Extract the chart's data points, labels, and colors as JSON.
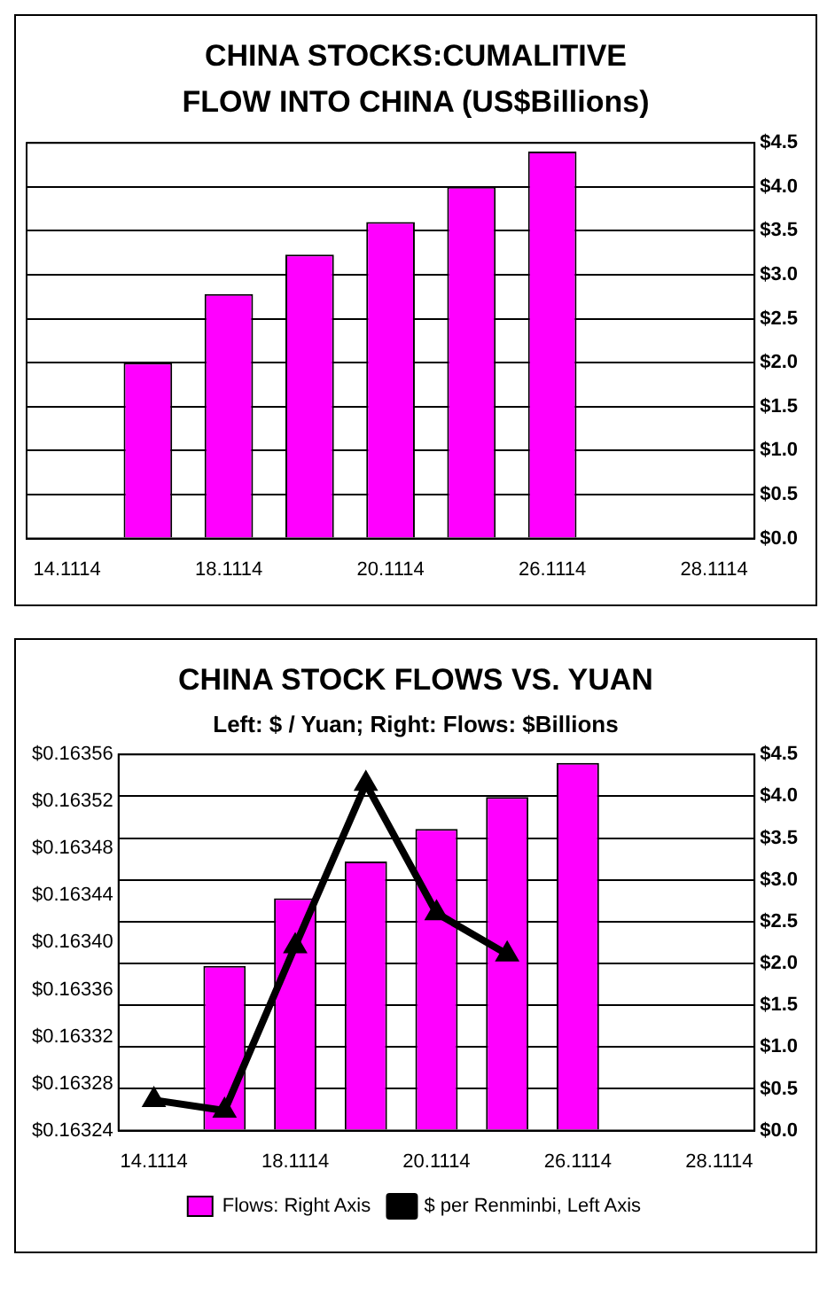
{
  "chart_data": [
    {
      "type": "bar",
      "title": "CHINA STOCKS:CUMALITIVE FLOW INTO CHINA (US$Billions)",
      "categories": [
        "14.1114",
        null,
        "18.1114",
        null,
        "20.1114",
        null,
        "26.1114",
        null,
        "28.1114"
      ],
      "series": [
        {
          "color": "#ff00ff",
          "axis": "y2",
          "values": [
            null,
            2.0,
            2.78,
            3.23,
            3.6,
            4.0,
            4.4,
            null,
            null
          ]
        }
      ],
      "y2lim": [
        0,
        4.5
      ],
      "y2ticks": [
        {
          "value": 0,
          "label": "$0.0"
        },
        {
          "value": 0.5,
          "label": "$0.5"
        },
        {
          "value": 1,
          "label": "$1.0"
        },
        {
          "value": 1.5,
          "label": "$1.5"
        },
        {
          "value": 2,
          "label": "$2.0"
        },
        {
          "value": 2.5,
          "label": "$2.5"
        },
        {
          "value": 3,
          "label": "$3.0"
        },
        {
          "value": 3.5,
          "label": "$3.5"
        },
        {
          "value": 4,
          "label": "$4.0"
        },
        {
          "value": 4.5,
          "label": "$4.5"
        }
      ],
      "grid": "y",
      "legend": false
    },
    {
      "type": "bar",
      "title": "CHINA STOCK FLOWS VS. YUAN",
      "subtitle": "Left: $ / Yuan; Right: Flows: $Billions",
      "categories": [
        "14.1114",
        null,
        "18.1114",
        null,
        "20.1114",
        null,
        "26.1114",
        null,
        "28.1114"
      ],
      "series": [
        {
          "name": "Flows: Right Axis",
          "type": "bar",
          "color": "#ff00ff",
          "axis": "y2",
          "values": [
            null,
            1.97,
            2.78,
            3.22,
            3.61,
            3.99,
            4.4,
            null,
            null
          ]
        },
        {
          "name": "$ per Renminbi, Left Axis",
          "type": "line",
          "color": "#000000",
          "axis": "y",
          "values": [
            0.163266,
            0.163257,
            0.163397,
            0.163535,
            0.163425,
            0.16339,
            null,
            null,
            null
          ]
        }
      ],
      "ylim": [
        0.16324,
        0.16356
      ],
      "yticks": [
        {
          "value": 0.16324,
          "label": "$0.16324"
        },
        {
          "value": 0.16328,
          "label": "$0.16328"
        },
        {
          "value": 0.16332,
          "label": "$0.16332"
        },
        {
          "value": 0.16336,
          "label": "$0.16336"
        },
        {
          "value": 0.1634,
          "label": "$0.16340"
        },
        {
          "value": 0.16344,
          "label": "$0.16344"
        },
        {
          "value": 0.16348,
          "label": "$0.16348"
        },
        {
          "value": 0.16352,
          "label": "$0.16352"
        },
        {
          "value": 0.16356,
          "label": "$0.16356"
        }
      ],
      "y2lim": [
        0,
        4.5
      ],
      "y2ticks": [
        {
          "value": 0,
          "label": "$0.0"
        },
        {
          "value": 0.5,
          "label": "$0.5"
        },
        {
          "value": 1,
          "label": "$1.0"
        },
        {
          "value": 1.5,
          "label": "$1.5"
        },
        {
          "value": 2,
          "label": "$2.0"
        },
        {
          "value": 2.5,
          "label": "$2.5"
        },
        {
          "value": 3,
          "label": "$3.0"
        },
        {
          "value": 3.5,
          "label": "$3.5"
        },
        {
          "value": 4,
          "label": "$4.0"
        },
        {
          "value": 4.5,
          "label": "$4.5"
        }
      ],
      "grid": "y",
      "legend": "bottom",
      "marker": "triangle",
      "line_style": "solid"
    }
  ]
}
